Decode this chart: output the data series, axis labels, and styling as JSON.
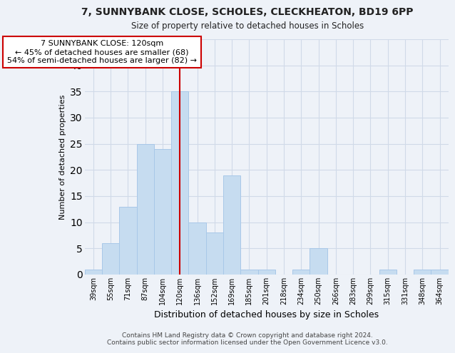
{
  "title": "7, SUNNYBANK CLOSE, SCHOLES, CLECKHEATON, BD19 6PP",
  "subtitle": "Size of property relative to detached houses in Scholes",
  "xlabel": "Distribution of detached houses by size in Scholes",
  "ylabel": "Number of detached properties",
  "bar_labels": [
    "39sqm",
    "55sqm",
    "71sqm",
    "87sqm",
    "104sqm",
    "120sqm",
    "136sqm",
    "152sqm",
    "169sqm",
    "185sqm",
    "201sqm",
    "218sqm",
    "234sqm",
    "250sqm",
    "266sqm",
    "283sqm",
    "299sqm",
    "315sqm",
    "331sqm",
    "348sqm",
    "364sqm"
  ],
  "bar_heights": [
    1,
    6,
    13,
    25,
    24,
    35,
    10,
    8,
    19,
    1,
    1,
    0,
    1,
    5,
    0,
    0,
    0,
    1,
    0,
    1,
    1
  ],
  "bar_color": "#c6dcf0",
  "bar_edge_color": "#a8c8e8",
  "vline_x": 5,
  "vline_color": "#cc0000",
  "annotation_line1": "7 SUNNYBANK CLOSE: 120sqm",
  "annotation_line2": "← 45% of detached houses are smaller (68)",
  "annotation_line3": "54% of semi-detached houses are larger (82) →",
  "annotation_box_color": "#ffffff",
  "annotation_box_edge": "#cc0000",
  "ylim": [
    0,
    45
  ],
  "yticks": [
    0,
    5,
    10,
    15,
    20,
    25,
    30,
    35,
    40,
    45
  ],
  "grid_color": "#d0dae8",
  "background_color": "#eef2f8",
  "footer_line1": "Contains HM Land Registry data © Crown copyright and database right 2024.",
  "footer_line2": "Contains public sector information licensed under the Open Government Licence v3.0."
}
